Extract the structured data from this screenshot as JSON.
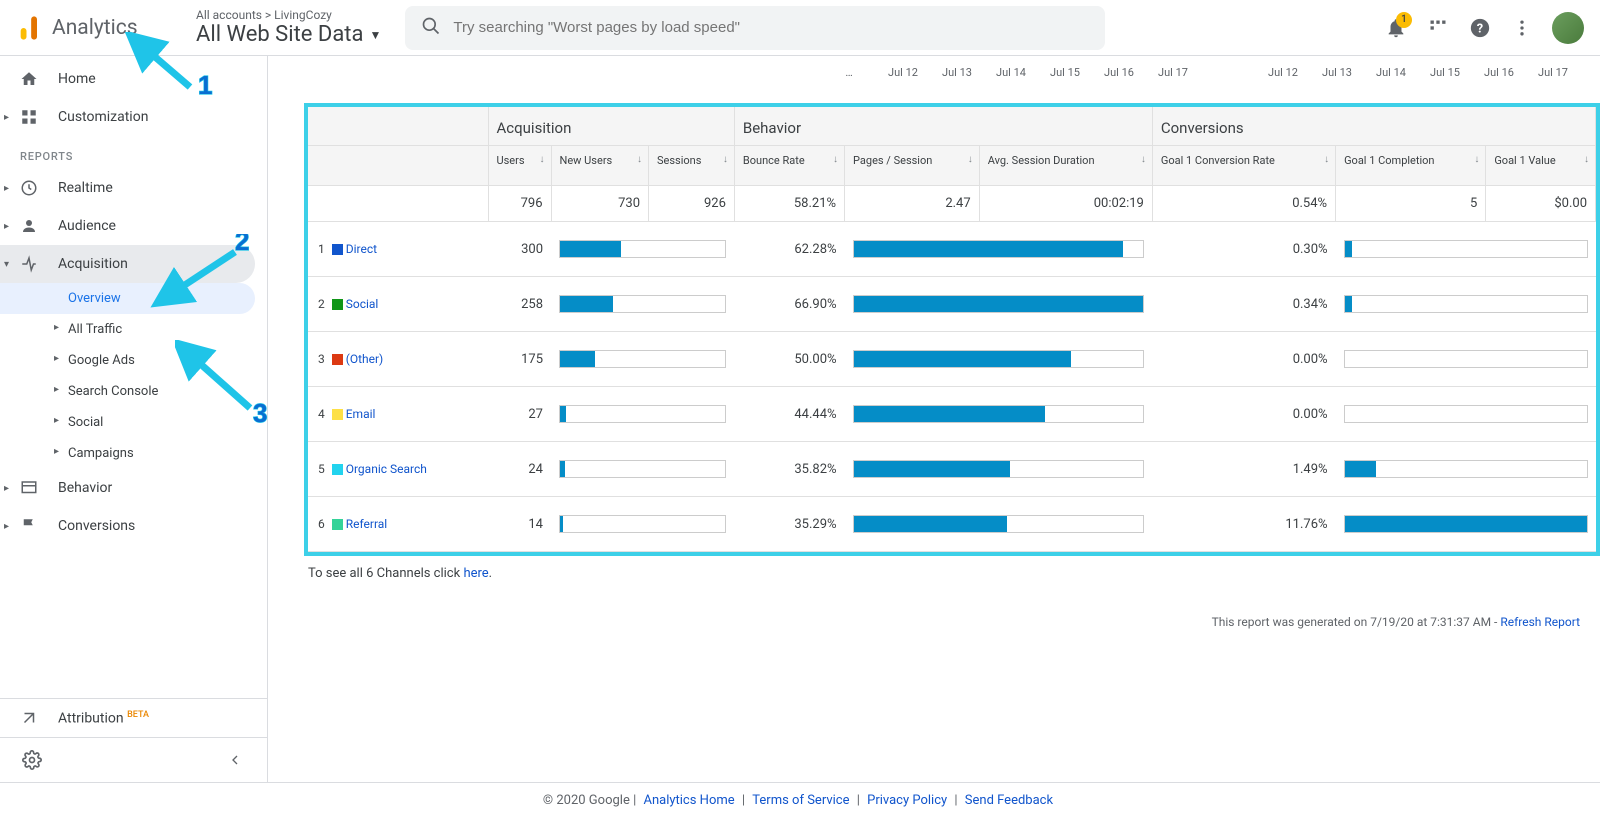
{
  "header": {
    "logo_text": "Analytics",
    "breadcrumb": "All accounts > LivingCozy",
    "view_name": "All Web Site Data",
    "search_placeholder": "Try searching \"Worst pages by load speed\"",
    "notif_count": "1"
  },
  "sidebar": {
    "home": "Home",
    "customization": "Customization",
    "reports_label": "REPORTS",
    "realtime": "Realtime",
    "audience": "Audience",
    "acquisition": "Acquisition",
    "overview": "Overview",
    "all_traffic": "All Traffic",
    "google_ads": "Google Ads",
    "search_console": "Search Console",
    "social": "Social",
    "campaigns": "Campaigns",
    "behavior": "Behavior",
    "conversions": "Conversions",
    "attribution": "Attribution",
    "beta": "BETA"
  },
  "dates": {
    "left": [
      "…",
      "Jul 12",
      "Jul 13",
      "Jul 14",
      "Jul 15",
      "Jul 16",
      "Jul 17"
    ],
    "right": [
      "Jul 12",
      "Jul 13",
      "Jul 14",
      "Jul 15",
      "Jul 16",
      "Jul 17"
    ]
  },
  "table": {
    "groups": {
      "acquisition": "Acquisition",
      "behavior": "Behavior",
      "conversions": "Conversions"
    },
    "columns": {
      "users": "Users",
      "new_users": "New Users",
      "sessions": "Sessions",
      "bounce": "Bounce Rate",
      "pages": "Pages / Session",
      "duration": "Avg. Session Duration",
      "conv_rate": "Goal 1 Conversion Rate",
      "completion": "Goal 1 Completion",
      "value": "Goal 1 Value"
    },
    "totals": {
      "users": "796",
      "new_users": "730",
      "sessions": "926",
      "bounce": "58.21%",
      "pages": "2.47",
      "duration": "00:02:19",
      "conv_rate": "0.54%",
      "completion": "5",
      "value": "$0.00"
    },
    "rows": [
      {
        "n": "1",
        "color": "#1155cc",
        "name": "Direct",
        "users": "300",
        "bounce": "62.28%",
        "conv": "0.30%",
        "bar_u": 100,
        "bar_b": 93,
        "bar_c": 3
      },
      {
        "n": "2",
        "color": "#109618",
        "name": "Social",
        "users": "258",
        "bounce": "66.90%",
        "conv": "0.34%",
        "bar_u": 86,
        "bar_b": 100,
        "bar_c": 3
      },
      {
        "n": "3",
        "color": "#dc3912",
        "name": "(Other)",
        "users": "175",
        "bounce": "50.00%",
        "conv": "0.00%",
        "bar_u": 58,
        "bar_b": 75,
        "bar_c": 0
      },
      {
        "n": "4",
        "color": "#fde047",
        "name": "Email",
        "users": "27",
        "bounce": "44.44%",
        "conv": "0.00%",
        "bar_u": 9,
        "bar_b": 66,
        "bar_c": 0
      },
      {
        "n": "5",
        "color": "#22d3ee",
        "name": "Organic Search",
        "users": "24",
        "bounce": "35.82%",
        "conv": "1.49%",
        "bar_u": 8,
        "bar_b": 54,
        "bar_c": 13
      },
      {
        "n": "6",
        "color": "#34d399",
        "name": "Referral",
        "users": "14",
        "bounce": "35.29%",
        "conv": "11.76%",
        "bar_u": 5,
        "bar_b": 53,
        "bar_c": 100
      }
    ],
    "max_users_bar_pct": 37,
    "bar_color": "#058dc7",
    "see_all_text": "To see all 6 Channels click ",
    "see_all_link": "here",
    "generated_text": "This report was generated on 7/19/20 at 7:31:37 AM - ",
    "refresh": "Refresh Report"
  },
  "footer": {
    "copyright": "© 2020 Google",
    "links": [
      "Analytics Home",
      "Terms of Service",
      "Privacy Policy",
      "Send Feedback"
    ]
  },
  "annotations": {
    "a1": "1",
    "a2": "2",
    "a3": "3"
  }
}
